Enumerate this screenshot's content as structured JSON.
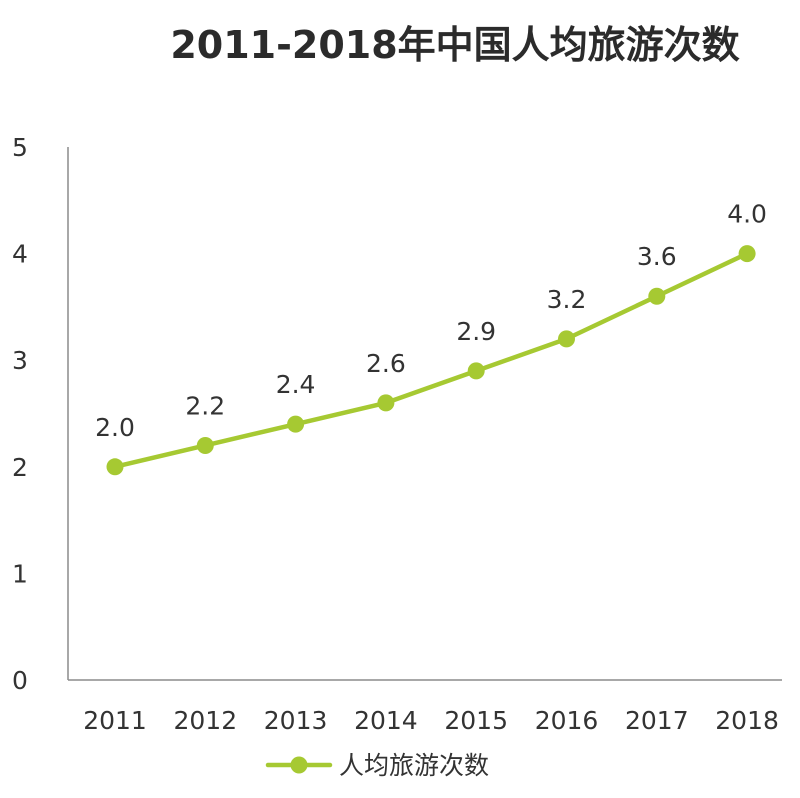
{
  "chart_data": {
    "type": "line",
    "title": "2011-2018年中国人均旅游次数",
    "categories": [
      "2011",
      "2012",
      "2013",
      "2014",
      "2015",
      "2016",
      "2017",
      "2018"
    ],
    "series": [
      {
        "name": "人均旅游次数",
        "values": [
          2.0,
          2.2,
          2.4,
          2.6,
          2.9,
          3.2,
          3.6,
          4.0
        ],
        "labels": [
          "2.0",
          "2.2",
          "2.4",
          "2.6",
          "2.9",
          "3.2",
          "3.6",
          "4.0"
        ],
        "color": "#a6c932"
      }
    ],
    "yticks": [
      "0",
      "1",
      "2",
      "3",
      "4",
      "5"
    ],
    "ylim": [
      0,
      5
    ],
    "grid": false,
    "legend_position": "bottom-center",
    "axis_color": "#8c8c8c"
  }
}
